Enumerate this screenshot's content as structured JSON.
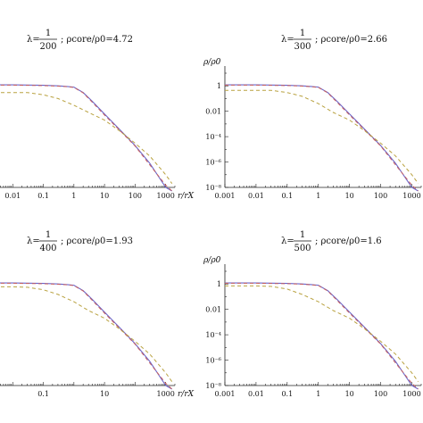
{
  "chart_data": [
    {
      "type": "line",
      "title_lambda_num": "1",
      "title_lambda_den": "200",
      "title_rest": "ρcore/ρ0=4.72",
      "xlabel": "r/rX",
      "ylabel": "",
      "xticks": [
        "0.01",
        "0.1",
        "1",
        "10",
        "100",
        "1000"
      ],
      "yticks": [],
      "xlim": [
        0.001,
        2000
      ],
      "ylim": [
        1e-08,
        10
      ],
      "series": [
        {
          "color": "#6a64c8",
          "dash": "solid",
          "x": [
            0.001,
            0.01,
            0.1,
            0.3,
            0.6,
            1,
            2,
            4,
            10,
            30,
            100,
            300,
            1000,
            1600
          ],
          "y": [
            1.2,
            1.2,
            1.1,
            1.0,
            0.9,
            0.8,
            0.3,
            0.06,
            0.006,
            0.0004,
            2e-05,
            8e-07,
            1e-08,
            5e-10
          ]
        },
        {
          "color": "#c86060",
          "dash": "dash",
          "x": [
            0.001,
            0.01,
            0.1,
            0.3,
            0.6,
            1,
            2,
            4,
            10,
            30,
            100,
            300,
            1000,
            1600
          ],
          "y": [
            1.15,
            1.15,
            1.05,
            0.95,
            0.85,
            0.75,
            0.28,
            0.05,
            0.005,
            0.00035,
            1.8e-05,
            6e-07,
            1.5e-08,
            1e-09
          ]
        },
        {
          "color": "#b9a240",
          "dash": "dash",
          "x": [
            0.001,
            0.01,
            0.03,
            0.1,
            0.3,
            1,
            3,
            10,
            30,
            100,
            300,
            1000,
            1600
          ],
          "y": [
            0.3,
            0.3,
            0.3,
            0.2,
            0.1,
            0.03,
            0.008,
            0.002,
            0.0003,
            3e-05,
            3e-06,
            1e-07,
            2e-08
          ]
        }
      ]
    },
    {
      "type": "line",
      "title_lambda_num": "1",
      "title_lambda_den": "300",
      "title_rest": "ρcore/ρ0=2.66",
      "xlabel": "r/rX",
      "ylabel": "ρ/ρ0",
      "xticks": [
        "0.001",
        "0.01",
        "0.1",
        "1",
        "10",
        "100",
        "1000"
      ],
      "yticks": [
        "1",
        "0.01",
        "10⁻⁴",
        "10⁻⁶",
        "10⁻⁸"
      ],
      "xlim": [
        0.001,
        2000
      ],
      "ylim": [
        1e-08,
        10
      ],
      "series": [
        {
          "color": "#6a64c8",
          "dash": "solid",
          "x": [
            0.001,
            0.01,
            0.1,
            0.3,
            0.6,
            1,
            2,
            4,
            10,
            30,
            100,
            300,
            1000,
            1600
          ],
          "y": [
            1.2,
            1.2,
            1.1,
            1.0,
            0.9,
            0.8,
            0.3,
            0.06,
            0.006,
            0.0004,
            2e-05,
            8e-07,
            1e-08,
            5e-10
          ]
        },
        {
          "color": "#c86060",
          "dash": "dash",
          "x": [
            0.001,
            0.01,
            0.1,
            0.3,
            0.6,
            1,
            2,
            4,
            10,
            30,
            100,
            300,
            1000,
            1600
          ],
          "y": [
            1.15,
            1.15,
            1.05,
            0.95,
            0.85,
            0.75,
            0.28,
            0.05,
            0.005,
            0.00035,
            1.8e-05,
            6e-07,
            1.5e-08,
            1e-09
          ]
        },
        {
          "color": "#b9a240",
          "dash": "dash",
          "x": [
            0.001,
            0.01,
            0.03,
            0.1,
            0.3,
            1,
            3,
            10,
            30,
            100,
            300,
            1000,
            1600
          ],
          "y": [
            0.45,
            0.45,
            0.45,
            0.3,
            0.15,
            0.04,
            0.008,
            0.002,
            0.0003,
            3e-05,
            3e-06,
            1e-07,
            2e-08
          ]
        }
      ]
    },
    {
      "type": "line",
      "title_lambda_num": "1",
      "title_lambda_den": "400",
      "title_rest": "ρcore/ρ0=1.93",
      "xlabel": "r/rX",
      "ylabel": "",
      "xticks": [
        "0.1",
        "10",
        "1000"
      ],
      "yticks": [],
      "xlim": [
        0.001,
        2000
      ],
      "ylim": [
        1e-08,
        10
      ],
      "series": [
        {
          "color": "#6a64c8",
          "dash": "solid",
          "x": [
            0.001,
            0.01,
            0.1,
            0.3,
            0.6,
            1,
            2,
            4,
            10,
            30,
            100,
            300,
            1000,
            1600
          ],
          "y": [
            1.2,
            1.2,
            1.1,
            1.0,
            0.9,
            0.8,
            0.3,
            0.06,
            0.006,
            0.0004,
            2e-05,
            8e-07,
            1e-08,
            5e-10
          ]
        },
        {
          "color": "#c86060",
          "dash": "dash",
          "x": [
            0.001,
            0.01,
            0.1,
            0.3,
            0.6,
            1,
            2,
            4,
            10,
            30,
            100,
            300,
            1000,
            1600
          ],
          "y": [
            1.15,
            1.15,
            1.05,
            0.95,
            0.85,
            0.75,
            0.28,
            0.05,
            0.005,
            0.00035,
            1.8e-05,
            6e-07,
            1.5e-08,
            1e-09
          ]
        },
        {
          "color": "#b9a240",
          "dash": "dash",
          "x": [
            0.001,
            0.01,
            0.03,
            0.1,
            0.3,
            1,
            3,
            10,
            30,
            100,
            300,
            1000,
            1600
          ],
          "y": [
            0.6,
            0.6,
            0.55,
            0.35,
            0.15,
            0.04,
            0.008,
            0.002,
            0.0003,
            3e-05,
            3e-06,
            1e-07,
            2e-08
          ]
        }
      ]
    },
    {
      "type": "line",
      "title_lambda_num": "1",
      "title_lambda_den": "500",
      "title_rest": "ρcore/ρ0=1.6",
      "xlabel": "r/rX",
      "ylabel": "ρ/ρ0",
      "xticks": [
        "0.001",
        "0.01",
        "0.1",
        "1",
        "10",
        "100",
        "1000"
      ],
      "yticks": [
        "1",
        "0.01",
        "10⁻⁴",
        "10⁻⁶",
        "10⁻⁸"
      ],
      "xlim": [
        0.001,
        2000
      ],
      "ylim": [
        1e-08,
        10
      ],
      "series": [
        {
          "color": "#6a64c8",
          "dash": "solid",
          "x": [
            0.001,
            0.01,
            0.1,
            0.3,
            0.6,
            1,
            2,
            4,
            10,
            30,
            100,
            300,
            1000,
            1600
          ],
          "y": [
            1.2,
            1.2,
            1.1,
            1.0,
            0.9,
            0.8,
            0.3,
            0.06,
            0.006,
            0.0004,
            2e-05,
            8e-07,
            1e-08,
            5e-10
          ]
        },
        {
          "color": "#c86060",
          "dash": "dash",
          "x": [
            0.001,
            0.01,
            0.1,
            0.3,
            0.6,
            1,
            2,
            4,
            10,
            30,
            100,
            300,
            1000,
            1600
          ],
          "y": [
            1.15,
            1.15,
            1.05,
            0.95,
            0.85,
            0.75,
            0.28,
            0.05,
            0.005,
            0.00035,
            1.8e-05,
            6e-07,
            1.5e-08,
            1e-09
          ]
        },
        {
          "color": "#b9a240",
          "dash": "dash",
          "x": [
            0.001,
            0.01,
            0.03,
            0.1,
            0.3,
            1,
            3,
            10,
            30,
            100,
            300,
            1000,
            1600
          ],
          "y": [
            0.7,
            0.7,
            0.65,
            0.4,
            0.15,
            0.04,
            0.008,
            0.002,
            0.0003,
            3e-05,
            3e-06,
            1e-07,
            2e-08
          ]
        }
      ]
    }
  ]
}
